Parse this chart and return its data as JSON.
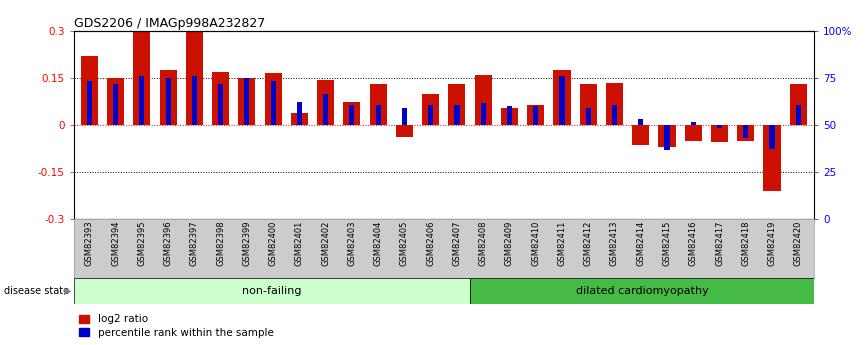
{
  "title": "GDS2206 / IMAGp998A232827",
  "samples": [
    "GSM82393",
    "GSM82394",
    "GSM82395",
    "GSM82396",
    "GSM82397",
    "GSM82398",
    "GSM82399",
    "GSM82400",
    "GSM82401",
    "GSM82402",
    "GSM82403",
    "GSM82404",
    "GSM82405",
    "GSM82406",
    "GSM82407",
    "GSM82408",
    "GSM82409",
    "GSM82410",
    "GSM82411",
    "GSM82412",
    "GSM82413",
    "GSM82414",
    "GSM82415",
    "GSM82416",
    "GSM82417",
    "GSM82418",
    "GSM82419",
    "GSM82420"
  ],
  "log2_ratio": [
    0.22,
    0.15,
    0.3,
    0.175,
    0.3,
    0.17,
    0.15,
    0.165,
    0.04,
    0.143,
    0.072,
    0.13,
    -0.038,
    0.1,
    0.13,
    0.16,
    0.055,
    0.065,
    0.175,
    0.13,
    0.135,
    -0.065,
    -0.07,
    -0.05,
    -0.055,
    -0.05,
    -0.21,
    0.13
  ],
  "percentile_raw": [
    0.14,
    0.13,
    0.155,
    0.15,
    0.155,
    0.13,
    0.15,
    0.14,
    0.075,
    0.1,
    0.065,
    0.065,
    0.055,
    0.065,
    0.065,
    0.07,
    0.06,
    0.06,
    0.155,
    0.055,
    0.065,
    0.02,
    -0.08,
    0.01,
    -0.01,
    -0.04,
    -0.075,
    0.065
  ],
  "non_failing_count": 15,
  "ylim_min": -0.3,
  "ylim_max": 0.3,
  "bar_color_red": "#cc1100",
  "bar_color_blue": "#0000cc",
  "non_failing_color": "#ccffcc",
  "dilated_color": "#44bb44",
  "label_bg_color": "#cccccc",
  "ytick_labels_left": [
    "-0.3",
    "-0.15",
    "0",
    "0.15",
    "0.3"
  ],
  "ytick_vals": [
    -0.3,
    -0.15,
    0.0,
    0.15,
    0.3
  ],
  "ytick_labels_right": [
    "0",
    "25",
    "50",
    "75",
    "100%"
  ],
  "title_fontsize": 9
}
